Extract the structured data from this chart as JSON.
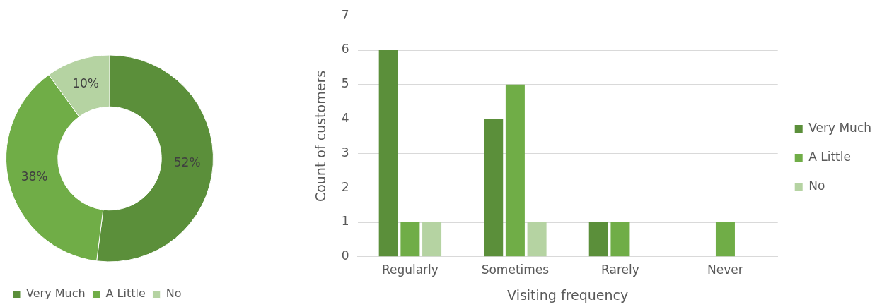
{
  "chart_data": [
    {
      "type": "donut",
      "categories": [
        "Very Much",
        "A Little",
        "No"
      ],
      "values": [
        52,
        38,
        10
      ],
      "colors": [
        "#5b8f3a",
        "#70ad47",
        "#b5d3a2"
      ],
      "value_labels": [
        "52%",
        "38%",
        "10%"
      ],
      "legend": "bottom"
    },
    {
      "type": "bar",
      "categories": [
        "Regularly",
        "Sometimes",
        "Rarely",
        "Never"
      ],
      "xlabel": "Visiting frequency",
      "ylabel": "Count of customers",
      "ylim": [
        0,
        7
      ],
      "yticks": [
        0,
        1,
        2,
        3,
        4,
        5,
        6,
        7
      ],
      "grid": "y",
      "legend": "right",
      "series": [
        {
          "name": "Very Much",
          "color": "#5b8f3a",
          "values": [
            6,
            4,
            1,
            0
          ]
        },
        {
          "name": "A Little",
          "color": "#70ad47",
          "values": [
            1,
            5,
            1,
            1
          ]
        },
        {
          "name": "No",
          "color": "#b5d3a2",
          "values": [
            1,
            1,
            0,
            0
          ]
        }
      ]
    }
  ]
}
